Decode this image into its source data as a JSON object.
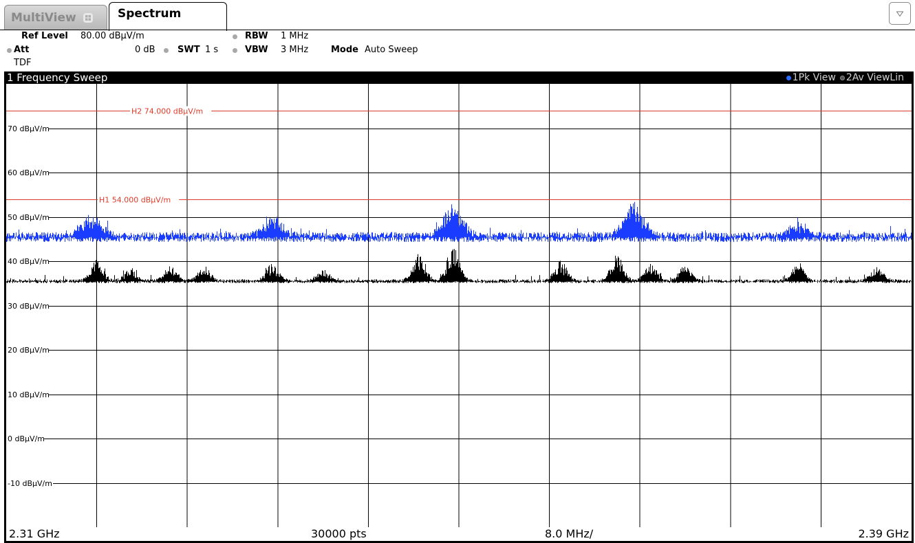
{
  "tabs": {
    "multiview": "MultiView",
    "spectrum": "Spectrum"
  },
  "settings": {
    "ref_level_label": "Ref Level",
    "ref_level_value": "80.00 dBµV/m",
    "att_label": "Att",
    "att_value": "0 dB",
    "tdf_label": "TDF",
    "swt_label": "SWT",
    "swt_value": "1 s",
    "rbw_label": "RBW",
    "rbw_value": "1 MHz",
    "vbw_label": "VBW",
    "vbw_value": "3 MHz",
    "mode_label": "Mode",
    "mode_value": "Auto Sweep"
  },
  "diagram": {
    "title": "1 Frequency Sweep",
    "trace1_label": "1Pk View",
    "trace2_label": "2Av ViewLin"
  },
  "footer": {
    "start": "2.31 GHz",
    "points": "30000 pts",
    "span_per_div": "8.0 MHz/",
    "stop": "2.39 GHz"
  },
  "colors": {
    "trace_peak": "#1a3cff",
    "trace_average": "#000000",
    "limit_line": "#e03a2a",
    "grid": "#000000",
    "background": "#ffffff"
  },
  "chart_data": {
    "type": "line",
    "title": "1 Frequency Sweep",
    "x_unit": "GHz",
    "xlim": [
      2.31,
      2.39
    ],
    "ylim": [
      -20,
      80
    ],
    "y_unit": "dBµV/m",
    "y_ticks": [
      70,
      60,
      50,
      40,
      30,
      20,
      10,
      0,
      -10
    ],
    "y_tick_labels": [
      "70 dBµV/m",
      "60 dBµV/m",
      "50 dBµV/m",
      "40 dBµV/m",
      "30 dBµV/m",
      "20 dBµV/m",
      "10 dBµV/m",
      "0 dBµV/m",
      "-10 dBµV/m"
    ],
    "grid": true,
    "limit_lines": [
      {
        "name": "H2",
        "label": "H2  74.000 dBµV/m",
        "value": 74.0
      },
      {
        "name": "H1",
        "label": "H1  54.000 dBµV/m",
        "value": 54.0
      }
    ],
    "series": [
      {
        "name": "1Pk View",
        "color": "#1a3cff",
        "baseline": 45.5,
        "peaks": [
          {
            "x": 2.3175,
            "height": 50.5
          },
          {
            "x": 2.3335,
            "height": 50.0
          },
          {
            "x": 2.3495,
            "height": 52.5
          },
          {
            "x": 2.3655,
            "height": 53.5
          },
          {
            "x": 2.38,
            "height": 48.5
          }
        ]
      },
      {
        "name": "2Av ViewLin",
        "color": "#000000",
        "baseline": 35.5,
        "peaks": [
          {
            "x": 2.318,
            "height": 40.0
          },
          {
            "x": 2.321,
            "height": 38.0
          },
          {
            "x": 2.3245,
            "height": 39.0
          },
          {
            "x": 2.3275,
            "height": 38.5
          },
          {
            "x": 2.3335,
            "height": 39.5
          },
          {
            "x": 2.338,
            "height": 38.0
          },
          {
            "x": 2.3465,
            "height": 41.5
          },
          {
            "x": 2.3495,
            "height": 43.5
          },
          {
            "x": 2.359,
            "height": 40.0
          },
          {
            "x": 2.364,
            "height": 41.5
          },
          {
            "x": 2.367,
            "height": 39.5
          },
          {
            "x": 2.37,
            "height": 39.0
          },
          {
            "x": 2.38,
            "height": 39.5
          },
          {
            "x": 2.387,
            "height": 38.5
          }
        ]
      }
    ]
  }
}
